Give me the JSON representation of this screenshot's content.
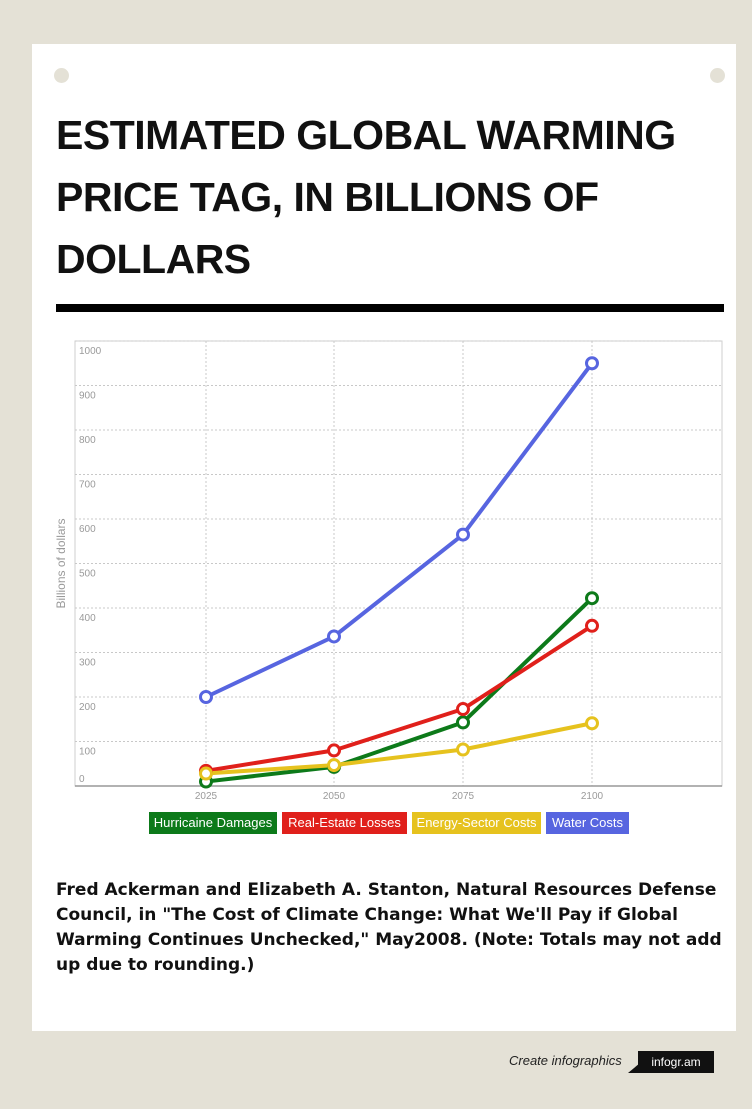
{
  "title": "ESTIMATED GLOBAL WARMING PRICE TAG, IN BILLIONS OF DOLLARS",
  "source_note": "Fred Ackerman and Elizabeth A. Stanton, Natural Resources Defense Council, in \"The Cost of Climate Change: What We'll Pay if Global Warming Continues Unchecked,\" May2008. (Note: Totals may not add up due to rounding.)",
  "footer": {
    "text": "Create infographics",
    "logo": "infogr.am"
  },
  "chart_data": {
    "type": "line",
    "ylabel": "Billions of dollars",
    "xlabel": "",
    "categories": [
      "2025",
      "2050",
      "2075",
      "2100"
    ],
    "ylim": [
      0,
      1000
    ],
    "yticks": [
      "0",
      "100",
      "200",
      "300",
      "400",
      "500",
      "600",
      "700",
      "800",
      "900",
      "1000"
    ],
    "grid": true,
    "legend_position": "bottom",
    "series": [
      {
        "name": "Hurricaine Damages",
        "color": "#0d7a1a",
        "values": [
          10,
          43,
          143,
          422
        ]
      },
      {
        "name": "Real-Estate Losses",
        "color": "#e0201b",
        "values": [
          34,
          80,
          173,
          360
        ]
      },
      {
        "name": "Energy-Sector Costs",
        "color": "#e6c21e",
        "values": [
          28,
          47,
          82,
          141
        ]
      },
      {
        "name": "Water Costs",
        "color": "#5765e0",
        "values": [
          200,
          336,
          565,
          950
        ]
      }
    ]
  }
}
